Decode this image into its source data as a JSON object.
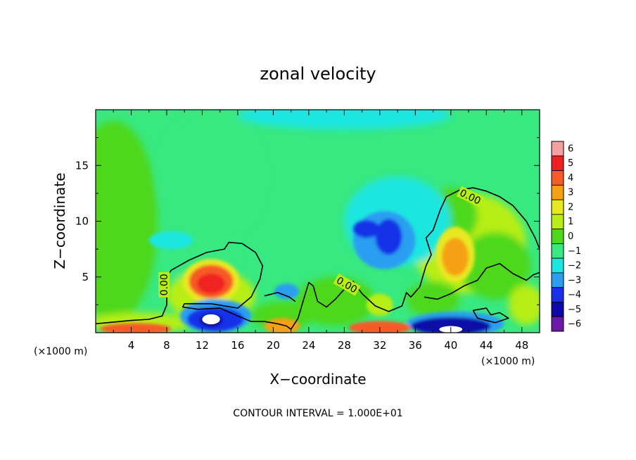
{
  "chart_data": {
    "type": "heatmap",
    "title": "zonal velocity",
    "xlabel": "X−coordinate",
    "ylabel": "Z−coordinate",
    "x_unit_left": "(×1000 m)",
    "x_unit_right": "(×1000 m)",
    "xlim": [
      0,
      50
    ],
    "ylim": [
      0,
      20
    ],
    "x_ticks": [
      4,
      8,
      12,
      16,
      20,
      24,
      28,
      32,
      36,
      40,
      44,
      48
    ],
    "x_tick_labels": [
      "4",
      "8",
      "12",
      "16",
      "20",
      "24",
      "28",
      "32",
      "36",
      "40",
      "44",
      "48"
    ],
    "y_ticks": [
      5,
      10,
      15
    ],
    "y_tick_labels": [
      "5",
      "10",
      "15"
    ],
    "colorbar": {
      "levels": [
        6,
        5,
        4,
        3,
        2,
        1,
        0,
        -1,
        -2,
        -3,
        -4,
        -5,
        -6
      ],
      "labels": [
        "6",
        "5",
        "4",
        "3",
        "2",
        "1",
        "0",
        "−1",
        "−2",
        "−3",
        "−4",
        "−5",
        "−6"
      ],
      "colors": [
        "#f4a0a0",
        "#f02020",
        "#f85a28",
        "#f6a018",
        "#e8e820",
        "#b6ee16",
        "#4ed81c",
        "#38e880",
        "#1ce6e0",
        "#2c9ef0",
        "#1830e8",
        "#0c08a8",
        "#6c18a8"
      ]
    },
    "contour_labels": [
      "0.00",
      "0.00",
      "0.00"
    ],
    "annotation": "CONTOUR INTERVAL = 1.000E+01",
    "features": [
      {
        "x": 13,
        "z": 4.5,
        "value": 5,
        "kind": "max"
      },
      {
        "x": 13.5,
        "z": 1.2,
        "value": -5,
        "kind": "min"
      },
      {
        "x": 33,
        "z": 8.5,
        "value": -3,
        "kind": "min"
      },
      {
        "x": 40.5,
        "z": 6.8,
        "value": 3,
        "kind": "max"
      },
      {
        "x": 40,
        "z": 0.5,
        "value": -5,
        "kind": "min"
      },
      {
        "x": 5,
        "z": 0.3,
        "value": 5,
        "kind": "max"
      },
      {
        "x": 21,
        "z": 0.5,
        "value": 4,
        "kind": "max"
      },
      {
        "x": 32,
        "z": 0.4,
        "value": 5,
        "kind": "max"
      },
      {
        "x": 21.5,
        "z": 3.8,
        "value": -3,
        "kind": "min"
      },
      {
        "x": 8.5,
        "z": 8.3,
        "value": -2,
        "kind": "min"
      },
      {
        "x": 30,
        "z": 19.5,
        "value": -2,
        "kind": "min"
      }
    ]
  }
}
